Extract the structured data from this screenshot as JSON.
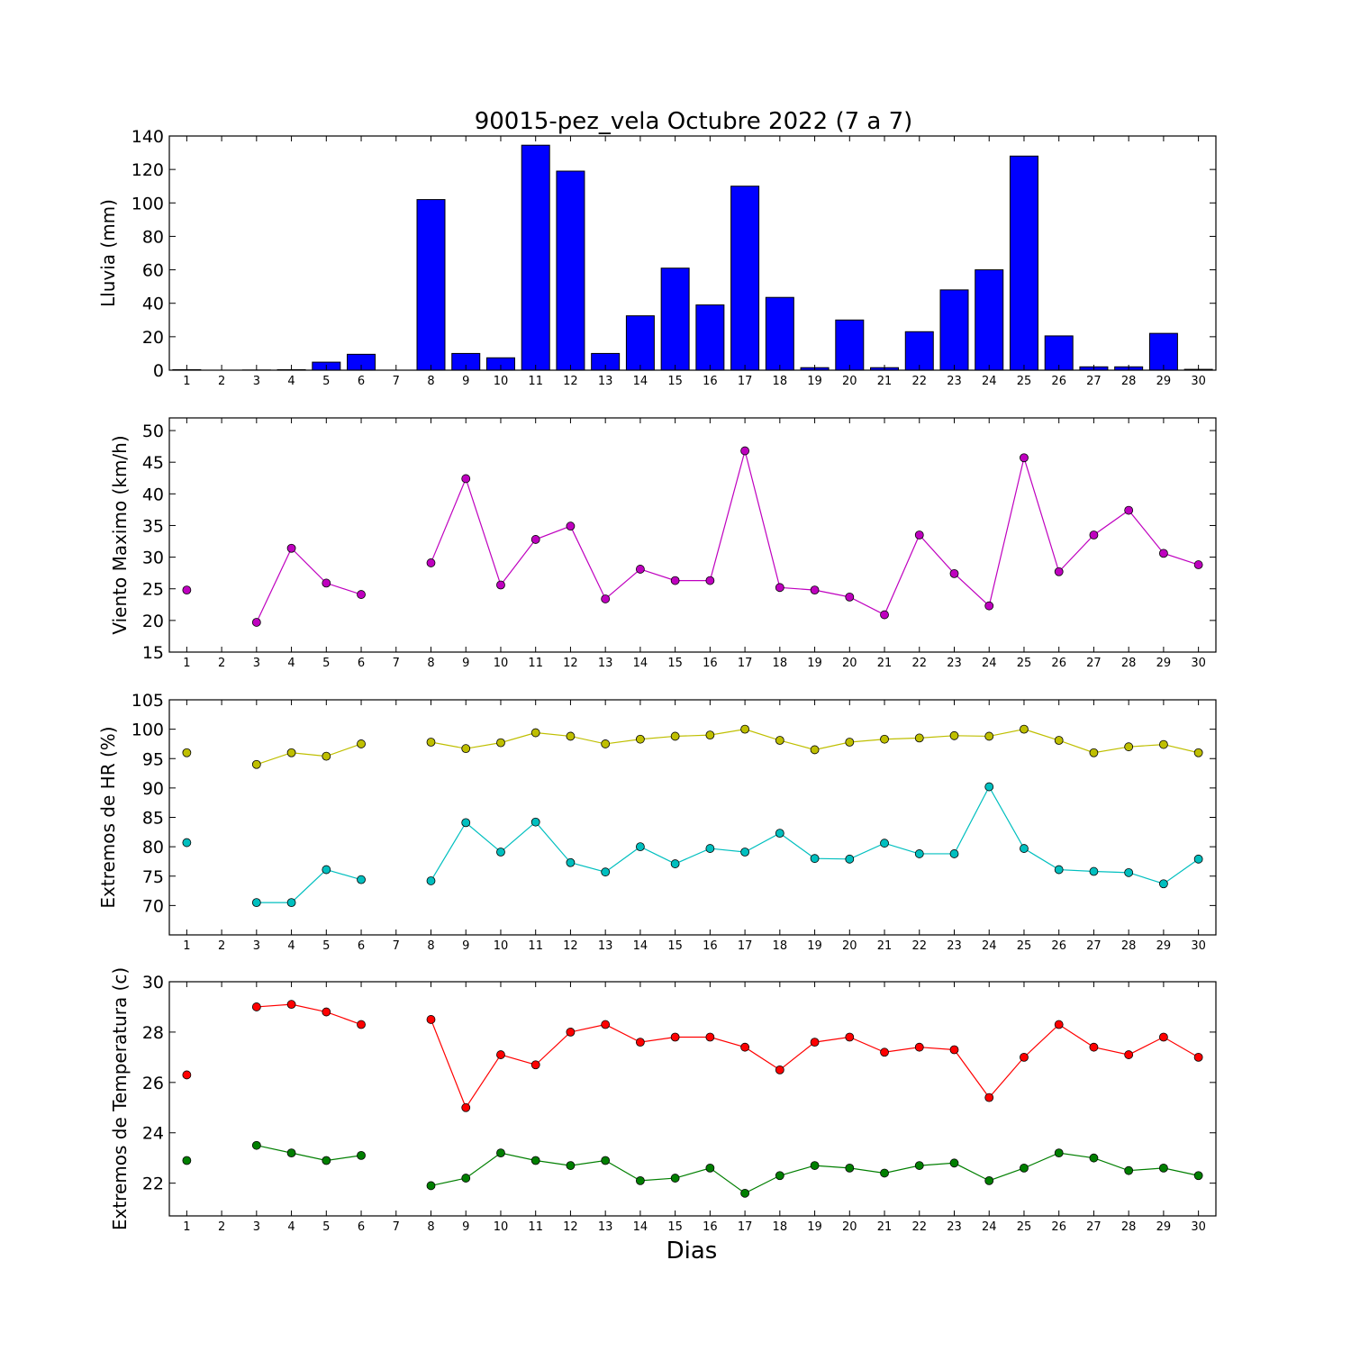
{
  "title": "90015-pez_vela Octubre 2022  (7 a 7)",
  "xlabel": "Dias",
  "chart_data": [
    {
      "type": "bar",
      "ylabel": "Lluvia (mm)",
      "ylim": [
        0,
        140
      ],
      "yticks": [
        0,
        20,
        40,
        60,
        80,
        100,
        120,
        140
      ],
      "x": [
        1,
        2,
        3,
        4,
        5,
        6,
        7,
        8,
        9,
        10,
        11,
        12,
        13,
        14,
        15,
        16,
        17,
        18,
        19,
        20,
        21,
        22,
        23,
        24,
        25,
        26,
        27,
        28,
        29,
        30
      ],
      "series": [
        {
          "color": "#0000ff",
          "values": [
            0.3,
            0,
            0.1,
            0.3,
            4.8,
            9.5,
            0,
            102,
            10,
            7.4,
            134.5,
            119,
            10,
            32.5,
            61,
            39,
            110,
            43.5,
            1.5,
            30,
            1.5,
            23,
            48,
            60,
            128,
            20.5,
            2,
            2,
            22,
            0.5
          ]
        }
      ]
    },
    {
      "type": "line",
      "ylabel": "Viento Maximo (km/h)",
      "ylim": [
        15,
        52
      ],
      "yticks": [
        15,
        20,
        25,
        30,
        35,
        40,
        45,
        50
      ],
      "x": [
        1,
        2,
        3,
        4,
        5,
        6,
        7,
        8,
        9,
        10,
        11,
        12,
        13,
        14,
        15,
        16,
        17,
        18,
        19,
        20,
        21,
        22,
        23,
        24,
        25,
        26,
        27,
        28,
        29,
        30
      ],
      "series": [
        {
          "color": "#bf00bf",
          "values": [
            24.8,
            null,
            19.7,
            31.4,
            25.9,
            24.1,
            null,
            29.1,
            42.4,
            25.6,
            32.8,
            34.9,
            23.4,
            28.1,
            26.3,
            26.3,
            46.8,
            25.2,
            24.8,
            23.7,
            20.9,
            33.5,
            27.4,
            22.3,
            45.7,
            27.7,
            33.5,
            37.4,
            30.6,
            28.8
          ]
        }
      ]
    },
    {
      "type": "line",
      "ylabel": "Extremos de HR (%)",
      "ylim": [
        65,
        105
      ],
      "yticks": [
        70,
        75,
        80,
        85,
        90,
        95,
        100,
        105
      ],
      "x": [
        1,
        2,
        3,
        4,
        5,
        6,
        7,
        8,
        9,
        10,
        11,
        12,
        13,
        14,
        15,
        16,
        17,
        18,
        19,
        20,
        21,
        22,
        23,
        24,
        25,
        26,
        27,
        28,
        29,
        30
      ],
      "series": [
        {
          "color": "#bfbf00",
          "values": [
            96,
            null,
            94,
            96,
            95.4,
            97.5,
            null,
            97.8,
            96.7,
            97.7,
            99.4,
            98.8,
            97.5,
            98.3,
            98.8,
            99,
            100,
            98.1,
            96.5,
            97.8,
            98.3,
            98.5,
            98.9,
            98.8,
            100,
            98.1,
            96,
            97,
            97.4,
            96
          ]
        },
        {
          "color": "#00bfbf",
          "values": [
            80.7,
            null,
            70.5,
            70.5,
            76.1,
            74.4,
            null,
            74.2,
            84.1,
            79.1,
            84.2,
            77.3,
            75.7,
            80,
            77.1,
            79.7,
            79.1,
            82.3,
            78,
            77.9,
            80.6,
            78.8,
            78.8,
            90.2,
            79.7,
            76.1,
            75.8,
            75.6,
            73.7,
            77.9
          ]
        }
      ]
    },
    {
      "type": "line",
      "ylabel": "Extremos de Temperatura (c)",
      "ylim": [
        20.7,
        30
      ],
      "yticks": [
        22,
        24,
        26,
        28,
        30
      ],
      "x": [
        1,
        2,
        3,
        4,
        5,
        6,
        7,
        8,
        9,
        10,
        11,
        12,
        13,
        14,
        15,
        16,
        17,
        18,
        19,
        20,
        21,
        22,
        23,
        24,
        25,
        26,
        27,
        28,
        29,
        30
      ],
      "series": [
        {
          "color": "#ff0000",
          "values": [
            26.3,
            null,
            29,
            29.1,
            28.8,
            28.3,
            null,
            28.5,
            25,
            27.1,
            26.7,
            28,
            28.3,
            27.6,
            27.8,
            27.8,
            27.4,
            26.5,
            27.6,
            27.8,
            27.2,
            27.4,
            27.3,
            25.4,
            27,
            28.3,
            27.4,
            27.1,
            27.8,
            27
          ]
        },
        {
          "color": "#007f00",
          "values": [
            22.9,
            null,
            23.5,
            23.2,
            22.9,
            23.1,
            null,
            21.9,
            22.2,
            23.2,
            22.9,
            22.7,
            22.9,
            22.1,
            22.2,
            22.6,
            21.6,
            22.3,
            22.7,
            22.6,
            22.4,
            22.7,
            22.8,
            22.1,
            22.6,
            23.2,
            23,
            22.5,
            22.6,
            22.3
          ]
        }
      ]
    }
  ]
}
